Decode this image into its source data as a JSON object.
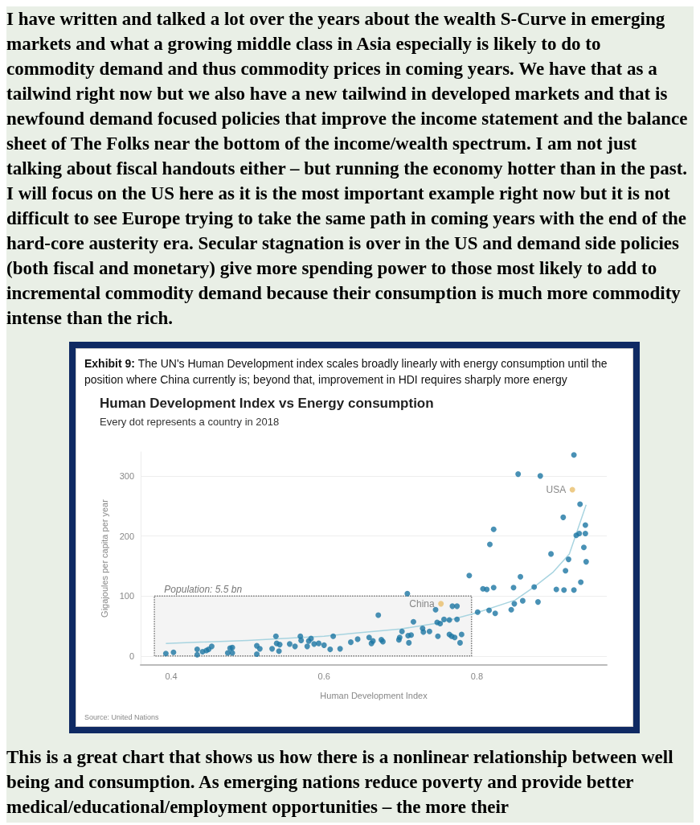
{
  "chart_data": {
    "type": "scatter",
    "title": "Human Development Index vs Energy consumption",
    "subtitle": "Every dot represents a country in 2018",
    "xlabel": "Human Development Index",
    "ylabel": "Gigajoules per capita per year",
    "annotations": [
      "I have written and talked a lot over the years about the wealth S-Curve in emerging markets and what a growing middle class in Asia especially is likely to do to commodity demand and thus commodity prices in coming years. We have that as a tailwind right now but we also have a new tailwind in developed markets and that is newfound demand focused policies that improve the income statement and the balance sheet of The Folks near the bottom of the income/wealth spectrum. I am not just talking about fiscal handouts either – but running the economy hotter than in the past. I will focus on the US here as it is the most important example right now but it is not difficult to see Europe trying to take the same path in coming years with the end of the hard-core austerity era. Secular stagnation is over in the US and demand side policies (both fiscal and monetary) give more spending power to those most likely to add to incremental commodity demand because their consumption is much more commodity intense than the rich.",
      "Exhibit 9: The UN's Human Development index scales broadly linearly with energy consumption until the position where China currently is; beyond that, improvement in HDI requires sharply more energy",
      "Source: United Nations",
      "This is a great chart that shows us how there is a nonlinear relationship between well being and consumption. As emerging nations reduce poverty and provide better medical/educational/employment opportunities – the more their",
      {
        "text": "China",
        "x": 0.753,
        "y": 87
      },
      {
        "text": "USA",
        "x": 0.925,
        "y": 277
      }
    ],
    "series": [
      {
        "color": "#1b75a3",
        "x": [
          0.393,
          0.403,
          0.434,
          0.434,
          0.441,
          0.446,
          0.449,
          0.453,
          0.474,
          0.477,
          0.48,
          0.48,
          0.512,
          0.512,
          0.516,
          0.532,
          0.537,
          0.538,
          0.542,
          0.541,
          0.555,
          0.562,
          0.569,
          0.57,
          0.578,
          0.58,
          0.583,
          0.587,
          0.593,
          0.6,
          0.608,
          0.612,
          0.621,
          0.635,
          0.644,
          0.659,
          0.662,
          0.664,
          0.671,
          0.675,
          0.677,
          0.698,
          0.699,
          0.702,
          0.71,
          0.714,
          0.711,
          0.709,
          0.717,
          0.729,
          0.73,
          0.738,
          0.749,
          0.746,
          0.748,
          0.752,
          0.757,
          0.764,
          0.764,
          0.767,
          0.771,
          0.768,
          0.774,
          0.774,
          0.778,
          0.78,
          0.79,
          0.801,
          0.808,
          0.813,
          0.816,
          0.817,
          0.822,
          0.822,
          0.824,
          0.845,
          0.849,
          0.848,
          0.854,
          0.857,
          0.86,
          0.875,
          0.88,
          0.883,
          0.897,
          0.904,
          0.913,
          0.914,
          0.916,
          0.92,
          0.927,
          0.927,
          0.935,
          0.936,
          0.93,
          0.934,
          0.942,
          0.942,
          0.94,
          0.943
        ],
        "values": [
          4,
          6,
          11,
          2,
          7,
          9,
          11,
          16,
          5,
          13,
          14,
          5,
          17,
          3,
          12,
          12,
          33,
          21,
          19,
          8,
          20,
          16,
          33,
          26,
          16,
          25,
          29,
          20,
          21,
          18,
          11,
          33,
          12,
          23,
          28,
          31,
          21,
          25,
          68,
          27,
          24,
          27,
          31,
          41,
          34,
          35,
          22,
          104,
          57,
          46,
          40,
          41,
          33,
          77,
          56,
          54,
          61,
          60,
          36,
          33,
          31,
          83,
          83,
          61,
          22,
          36,
          134,
          73,
          112,
          111,
          76,
          186,
          114,
          211,
          71,
          77,
          87,
          114,
          303,
          132,
          92,
          115,
          90,
          300,
          170,
          111,
          231,
          110,
          142,
          161,
          110,
          335,
          253,
          123,
          201,
          204,
          204,
          218,
          181,
          157
        ]
      },
      {
        "color": "#e8be6a",
        "x": [
          0.753,
          0.925
        ],
        "values": [
          87,
          277
        ]
      },
      {
        "type": "line",
        "marker": "none",
        "color": "#a8d4e0",
        "x": [
          0.393,
          0.5,
          0.6,
          0.639,
          0.7,
          0.75,
          0.8,
          0.85,
          0.875,
          0.9,
          0.921,
          0.943
        ],
        "values": [
          21,
          26,
          33,
          38,
          45,
          55,
          72,
          93,
          115,
          140,
          170,
          252
        ]
      }
    ],
    "bands": [
      {
        "axis": "x",
        "from": 0.378,
        "to": 0.793,
        "label": "Population: 5.5 bn",
        "color": "#777777"
      }
    ],
    "marker": "circle",
    "grid": "y",
    "xlim": [
      0.36,
      0.97
    ],
    "xticks": [
      0.4,
      0.6,
      0.8
    ],
    "ylim": [
      -15,
      340
    ],
    "yticks": [
      0,
      100,
      200,
      300
    ]
  }
}
